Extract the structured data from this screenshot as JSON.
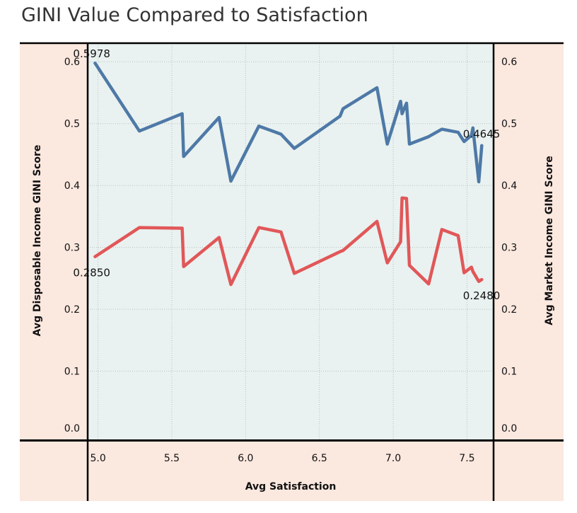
{
  "title": "GINI Value Compared to Satisfaction",
  "colors": {
    "panel_bg": "#fbe8df",
    "plot_bg": "#e9f2f0",
    "blue_series": "#4e79a7",
    "red_series": "#e15759"
  },
  "chart_data": {
    "type": "line",
    "title": "GINI Value Compared to Satisfaction",
    "xlabel": "Avg Satisfaction",
    "ylabel_left": "Avg Disposable Income GINI Score",
    "ylabel_right": "Avg Market Income GINI Score",
    "xlim": [
      4.93,
      7.68
    ],
    "ylim": [
      0,
      0.63
    ],
    "x_ticks": [
      "5.0",
      "5.5",
      "6.0",
      "6.5",
      "7.0",
      "7.5"
    ],
    "x_tick_values": [
      5.0,
      5.5,
      6.0,
      6.5,
      7.0,
      7.5
    ],
    "y_ticks": [
      "0.0",
      "0.1",
      "0.2",
      "0.3",
      "0.4",
      "0.5",
      "0.6"
    ],
    "y_tick_values": [
      0.0,
      0.1,
      0.2,
      0.3,
      0.4,
      0.5,
      0.6
    ],
    "grid": true,
    "series": [
      {
        "color": "#4e79a7",
        "points": [
          [
            4.98,
            0.5978
          ],
          [
            5.28,
            0.488
          ],
          [
            5.57,
            0.516
          ],
          [
            5.58,
            0.447
          ],
          [
            5.82,
            0.51
          ],
          [
            5.9,
            0.407
          ],
          [
            6.09,
            0.496
          ],
          [
            6.24,
            0.483
          ],
          [
            6.33,
            0.46
          ],
          [
            6.64,
            0.512
          ],
          [
            6.66,
            0.524
          ],
          [
            6.89,
            0.558
          ],
          [
            6.96,
            0.467
          ],
          [
            7.05,
            0.536
          ],
          [
            7.06,
            0.516
          ],
          [
            7.09,
            0.533
          ],
          [
            7.11,
            0.467
          ],
          [
            7.24,
            0.479
          ],
          [
            7.33,
            0.491
          ],
          [
            7.44,
            0.486
          ],
          [
            7.48,
            0.471
          ],
          [
            7.53,
            0.481
          ],
          [
            7.54,
            0.493
          ],
          [
            7.58,
            0.406
          ],
          [
            7.6,
            0.4645
          ]
        ],
        "start_label": "0.5978",
        "end_label": "0.4645"
      },
      {
        "color": "#e15759",
        "points": [
          [
            4.98,
            0.285
          ],
          [
            5.28,
            0.332
          ],
          [
            5.57,
            0.331
          ],
          [
            5.58,
            0.269
          ],
          [
            5.82,
            0.316
          ],
          [
            5.9,
            0.24
          ],
          [
            6.09,
            0.332
          ],
          [
            6.24,
            0.325
          ],
          [
            6.33,
            0.258
          ],
          [
            6.64,
            0.293
          ],
          [
            6.66,
            0.295
          ],
          [
            6.89,
            0.342
          ],
          [
            6.96,
            0.275
          ],
          [
            7.05,
            0.309
          ],
          [
            7.06,
            0.38
          ],
          [
            7.09,
            0.379
          ],
          [
            7.11,
            0.271
          ],
          [
            7.24,
            0.241
          ],
          [
            7.33,
            0.329
          ],
          [
            7.44,
            0.319
          ],
          [
            7.48,
            0.259
          ],
          [
            7.53,
            0.268
          ],
          [
            7.54,
            0.261
          ],
          [
            7.58,
            0.245
          ],
          [
            7.6,
            0.248
          ]
        ],
        "start_label": "0.2850",
        "end_label": "0.2480"
      }
    ]
  }
}
